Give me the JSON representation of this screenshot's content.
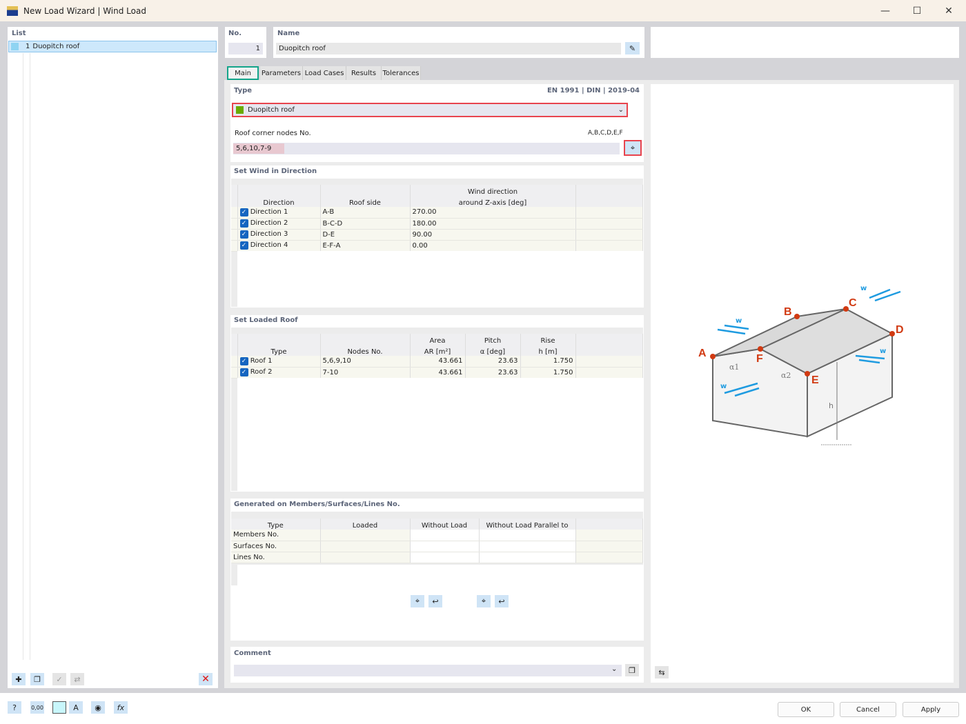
{
  "window": {
    "title": "New Load Wizard | Wind Load",
    "minimize": "—",
    "maximize": "☐",
    "close": "✕"
  },
  "list": {
    "label": "List",
    "items": [
      {
        "no": "1",
        "name": "Duopitch roof",
        "color": "#8fd4f2"
      }
    ]
  },
  "header": {
    "no_label": "No.",
    "no_value": "1",
    "name_label": "Name",
    "name_value": "Duopitch roof"
  },
  "tabs": [
    {
      "label": "Main",
      "active": true
    },
    {
      "label": "Parameters"
    },
    {
      "label": "Load Cases"
    },
    {
      "label": "Results"
    },
    {
      "label": "Tolerances"
    }
  ],
  "type": {
    "label": "Type",
    "standard": "EN 1991 | DIN | 2019-04",
    "selected": "Duopitch roof",
    "color": "#6aaa00",
    "nodes_label": "Roof corner nodes No.",
    "nodes_hint": "A,B,C,D,E,F",
    "nodes_value": "5,6,10,7-9"
  },
  "wind": {
    "title": "Set Wind in Direction",
    "headers": [
      "Direction",
      "Roof side",
      "Wind direction",
      "around Z-axis [deg]"
    ],
    "rows": [
      {
        "checked": true,
        "direction": "Direction 1",
        "side": "A-B",
        "angle": "270.00"
      },
      {
        "checked": true,
        "direction": "Direction 2",
        "side": "B-C-D",
        "angle": "180.00"
      },
      {
        "checked": true,
        "direction": "Direction 3",
        "side": "D-E",
        "angle": "90.00"
      },
      {
        "checked": true,
        "direction": "Direction 4",
        "side": "E-F-A",
        "angle": "0.00"
      }
    ]
  },
  "roof": {
    "title": "Set Loaded Roof",
    "headers": {
      "type": "Type",
      "nodes": "Nodes No.",
      "area1": "Area",
      "area2": "AR [m²]",
      "pitch1": "Pitch",
      "pitch2": "α [deg]",
      "rise1": "Rise",
      "rise2": "h [m]"
    },
    "rows": [
      {
        "checked": true,
        "type": "Roof 1",
        "nodes": "5,6,9,10",
        "area": "43.661",
        "pitch": "23.63",
        "rise": "1.750"
      },
      {
        "checked": true,
        "type": "Roof 2",
        "nodes": "7-10",
        "area": "43.661",
        "pitch": "23.63",
        "rise": "1.750"
      }
    ]
  },
  "generated": {
    "title": "Generated on Members/Surfaces/Lines No.",
    "headers": [
      "Type",
      "Loaded",
      "Without Load",
      "Without Load Parallel to"
    ],
    "rows": [
      "Members No.",
      "Surfaces No.",
      "Lines No."
    ]
  },
  "comment": {
    "label": "Comment",
    "value": ""
  },
  "diagram": {
    "labels": [
      "A",
      "B",
      "C",
      "D",
      "E",
      "F"
    ],
    "w": "w",
    "alpha1": "α1",
    "alpha2": "α2",
    "h": "h",
    "node_color": "#d13a12",
    "arrow_color": "#1e9be0"
  },
  "footer": {
    "ok": "OK",
    "cancel": "Cancel",
    "apply": "Apply"
  },
  "colors": {
    "highlight_red": "#e8434d",
    "highlight_green": "#13a58a",
    "selection": "#cde8fb"
  }
}
